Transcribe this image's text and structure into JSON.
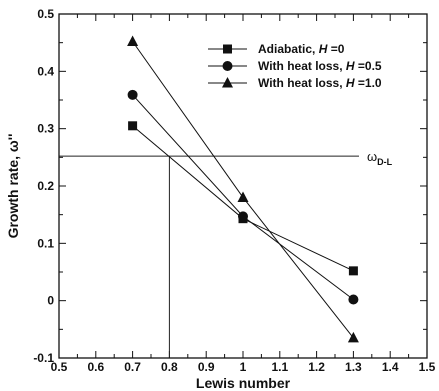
{
  "chart_data": {
    "type": "line",
    "xlabel": "Lewis number",
    "ylabel": "Growth rate, ω''",
    "xlim": [
      0.5,
      1.5
    ],
    "ylim": [
      -0.1,
      0.5
    ],
    "xticks": [
      0.5,
      0.6,
      0.7,
      0.8,
      0.9,
      1.0,
      1.1,
      1.2,
      1.3,
      1.4,
      1.5
    ],
    "xtick_labels": [
      "0.5",
      "0.6",
      "0.7",
      "0.8",
      "0.9",
      "1",
      "1.1",
      "1.2",
      "1.3",
      "1.4",
      "1.5"
    ],
    "yticks": [
      -0.1,
      0.0,
      0.1,
      0.2,
      0.3,
      0.4,
      0.5
    ],
    "ytick_labels": [
      "-0.1",
      "0",
      "0.1",
      "0.2",
      "0.3",
      "0.4",
      "0.5"
    ],
    "grid": false,
    "legend_position": "top-right",
    "series": [
      {
        "name": "Adiabatic, H =0",
        "marker": "square",
        "x": [
          0.7,
          1.0,
          1.3
        ],
        "y": [
          0.305,
          0.143,
          0.052
        ]
      },
      {
        "name": "With heat loss, H =0.5",
        "marker": "circle",
        "x": [
          0.7,
          1.0,
          1.3
        ],
        "y": [
          0.359,
          0.147,
          0.002
        ]
      },
      {
        "name": "With heat loss, H =1.0",
        "marker": "triangle",
        "x": [
          0.7,
          1.0,
          1.3
        ],
        "y": [
          0.452,
          0.18,
          -0.065
        ]
      }
    ],
    "annotations": [
      {
        "label_main": "ω",
        "label_sub": "D-L",
        "y": 0.252,
        "x_intersect": 0.8
      }
    ]
  }
}
